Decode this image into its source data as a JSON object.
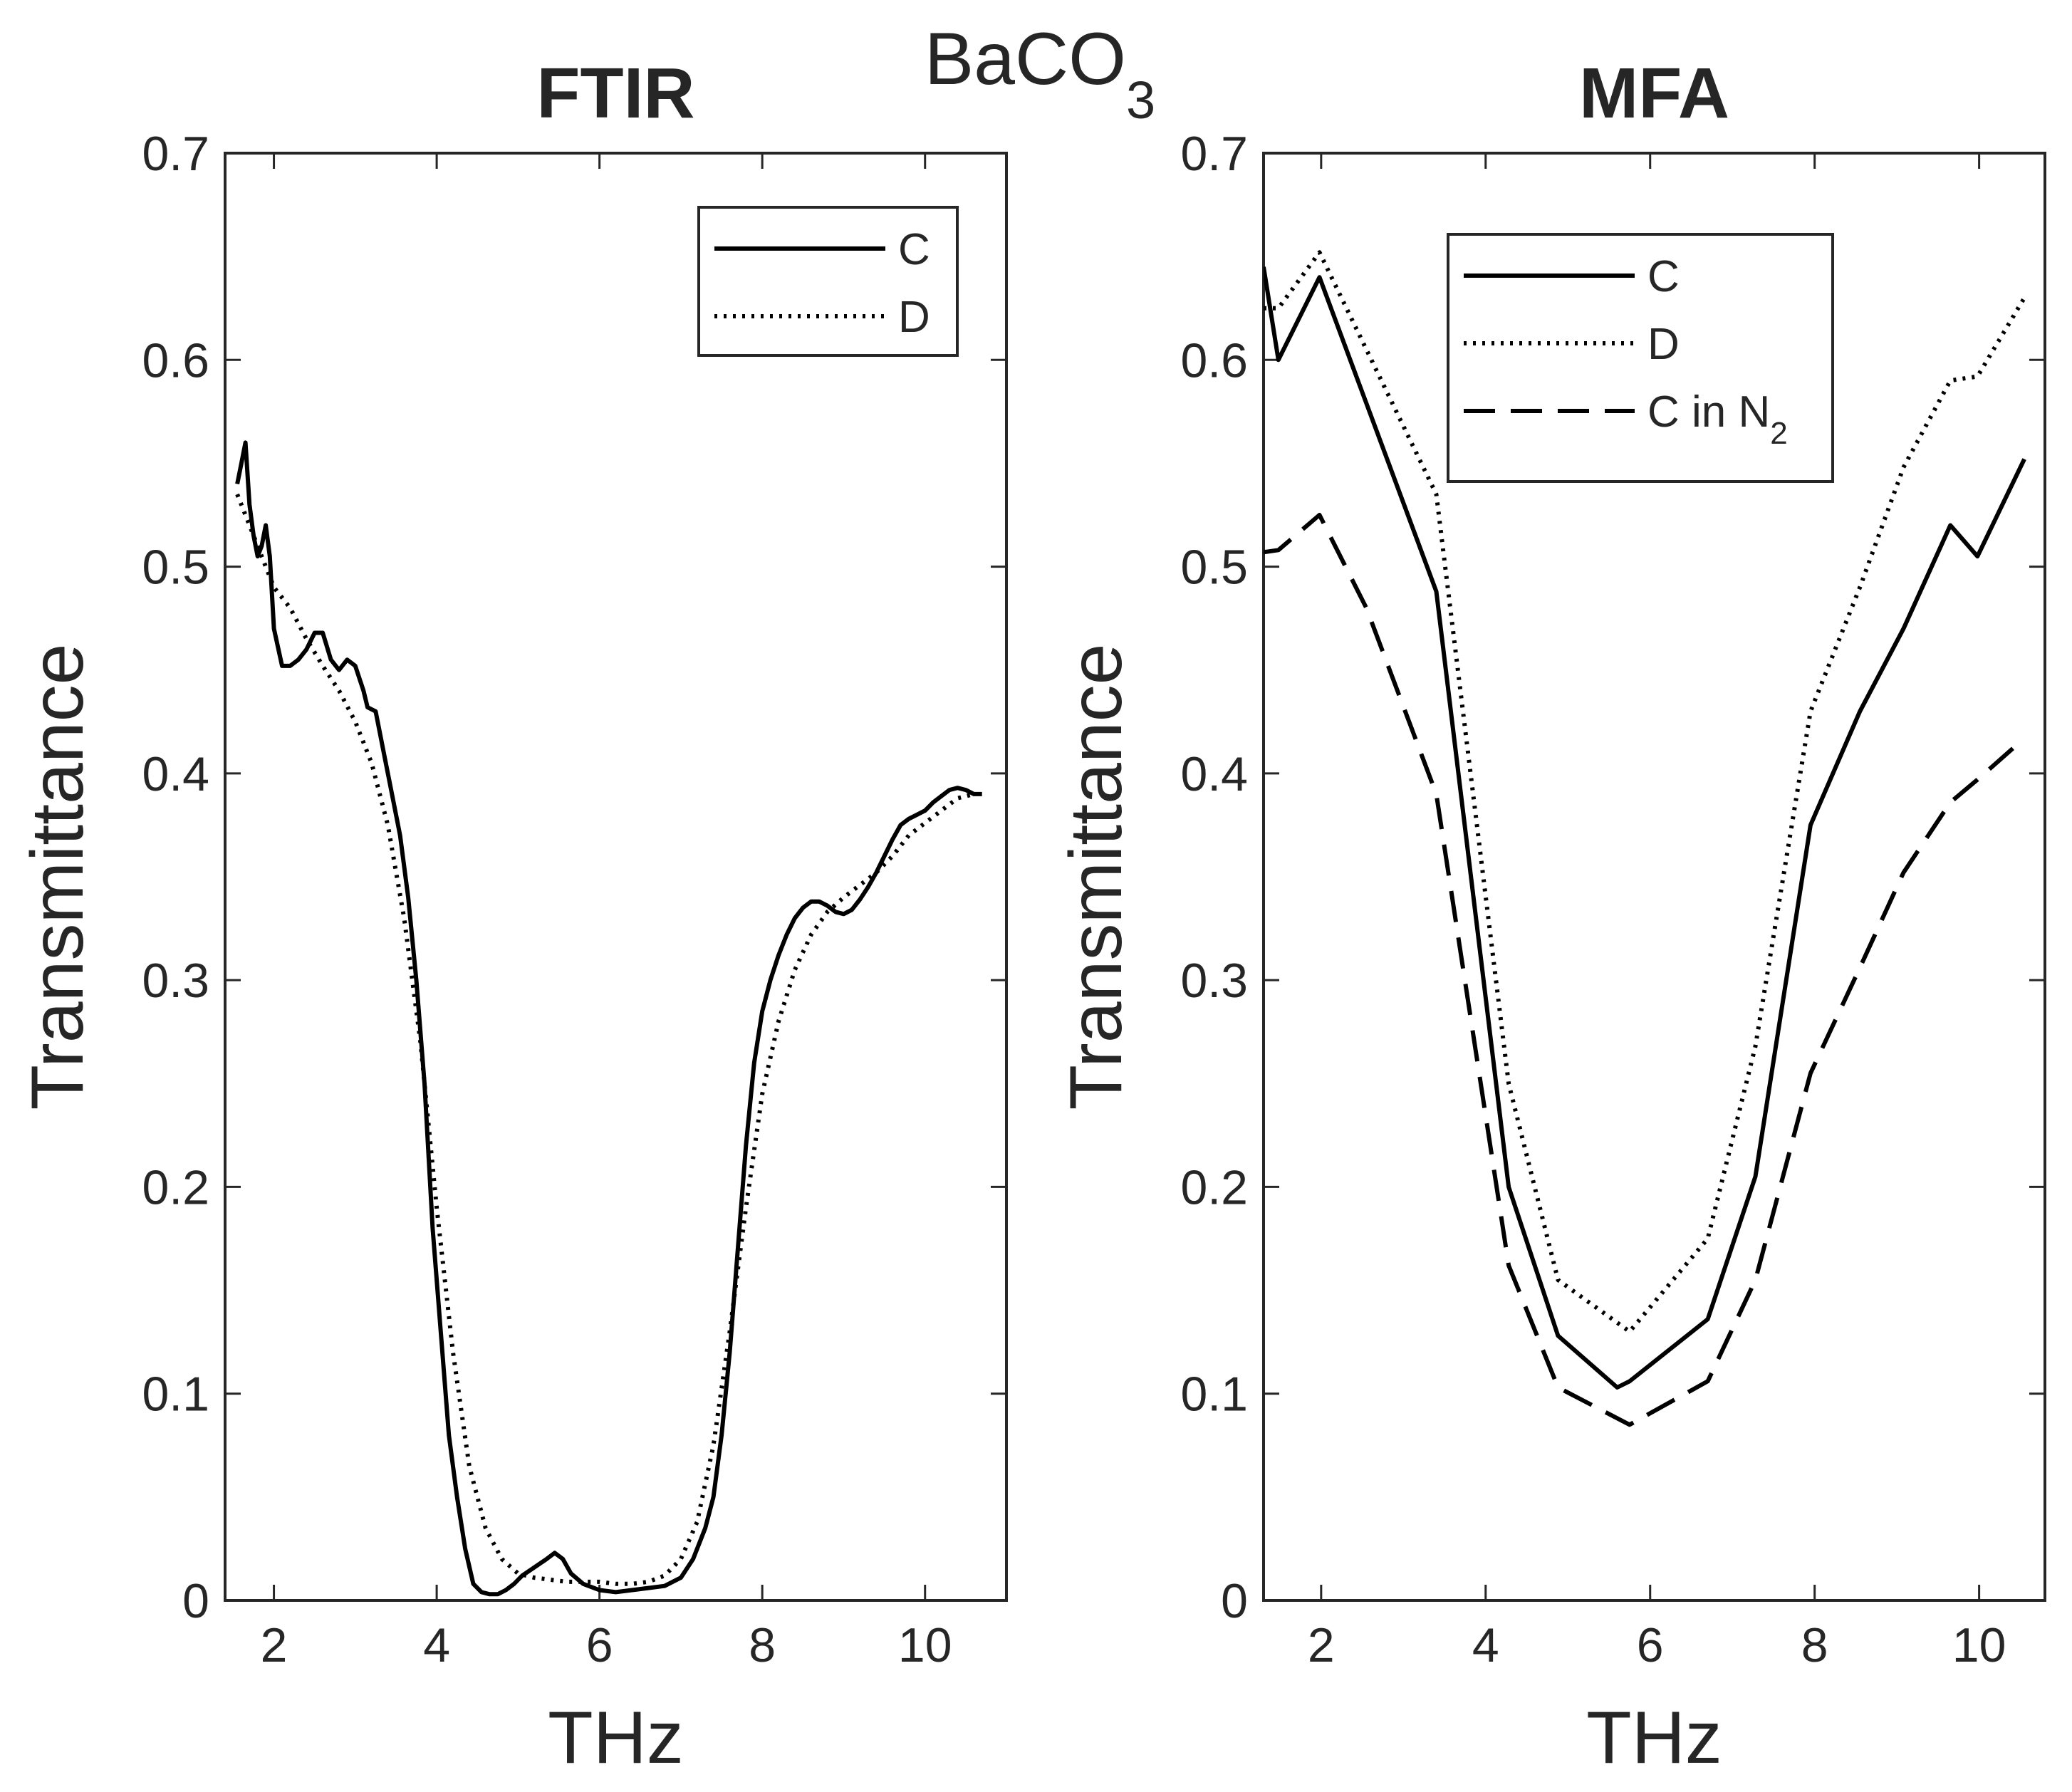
{
  "suptitle": {
    "main": "BaCO",
    "sub": "3"
  },
  "colors": {
    "axis": "#262626",
    "line": "#000000",
    "background": "#ffffff"
  },
  "chart_data": [
    {
      "type": "line",
      "title": "FTIR",
      "xlabel": "THz",
      "ylabel": "Transmittance",
      "xlim": [
        1.4,
        11
      ],
      "ylim": [
        0,
        0.7
      ],
      "xticks": [
        2,
        4,
        6,
        8,
        10
      ],
      "xtick_labels": [
        "2",
        "4",
        "6",
        "8",
        "10"
      ],
      "yticks": [
        0,
        0.1,
        0.2,
        0.3,
        0.4,
        0.5,
        0.6,
        0.7
      ],
      "ytick_labels": [
        "0",
        "0.1",
        "0.2",
        "0.3",
        "0.4",
        "0.5",
        "0.6",
        "0.7"
      ],
      "legend_position": "top-right",
      "series": [
        {
          "name": "C",
          "label_main": "C",
          "label_sub": "",
          "style": "solid",
          "points": [
            [
              1.55,
              0.54
            ],
            [
              1.6,
              0.55
            ],
            [
              1.65,
              0.56
            ],
            [
              1.7,
              0.53
            ],
            [
              1.75,
              0.515
            ],
            [
              1.8,
              0.505
            ],
            [
              1.85,
              0.51
            ],
            [
              1.9,
              0.52
            ],
            [
              1.95,
              0.505
            ],
            [
              2.0,
              0.47
            ],
            [
              2.1,
              0.452
            ],
            [
              2.2,
              0.452
            ],
            [
              2.3,
              0.455
            ],
            [
              2.4,
              0.46
            ],
            [
              2.5,
              0.468
            ],
            [
              2.6,
              0.468
            ],
            [
              2.7,
              0.455
            ],
            [
              2.8,
              0.45
            ],
            [
              2.9,
              0.455
            ],
            [
              3.0,
              0.452
            ],
            [
              3.1,
              0.44
            ],
            [
              3.15,
              0.432
            ],
            [
              3.25,
              0.43
            ],
            [
              3.35,
              0.41
            ],
            [
              3.45,
              0.39
            ],
            [
              3.55,
              0.37
            ],
            [
              3.65,
              0.34
            ],
            [
              3.75,
              0.3
            ],
            [
              3.85,
              0.25
            ],
            [
              3.95,
              0.18
            ],
            [
              4.05,
              0.13
            ],
            [
              4.15,
              0.08
            ],
            [
              4.25,
              0.05
            ],
            [
              4.35,
              0.025
            ],
            [
              4.45,
              0.008
            ],
            [
              4.55,
              0.004
            ],
            [
              4.65,
              0.003
            ],
            [
              4.75,
              0.003
            ],
            [
              4.85,
              0.005
            ],
            [
              4.95,
              0.008
            ],
            [
              5.05,
              0.012
            ],
            [
              5.2,
              0.016
            ],
            [
              5.35,
              0.02
            ],
            [
              5.45,
              0.023
            ],
            [
              5.55,
              0.02
            ],
            [
              5.65,
              0.013
            ],
            [
              5.8,
              0.008
            ],
            [
              6.0,
              0.005
            ],
            [
              6.2,
              0.004
            ],
            [
              6.4,
              0.005
            ],
            [
              6.6,
              0.006
            ],
            [
              6.8,
              0.007
            ],
            [
              7.0,
              0.011
            ],
            [
              7.15,
              0.02
            ],
            [
              7.3,
              0.035
            ],
            [
              7.4,
              0.05
            ],
            [
              7.5,
              0.08
            ],
            [
              7.6,
              0.12
            ],
            [
              7.7,
              0.17
            ],
            [
              7.8,
              0.22
            ],
            [
              7.9,
              0.26
            ],
            [
              8.0,
              0.285
            ],
            [
              8.1,
              0.3
            ],
            [
              8.2,
              0.312
            ],
            [
              8.3,
              0.322
            ],
            [
              8.4,
              0.33
            ],
            [
              8.5,
              0.335
            ],
            [
              8.6,
              0.338
            ],
            [
              8.7,
              0.338
            ],
            [
              8.8,
              0.336
            ],
            [
              8.9,
              0.333
            ],
            [
              9.0,
              0.332
            ],
            [
              9.1,
              0.334
            ],
            [
              9.2,
              0.339
            ],
            [
              9.3,
              0.345
            ],
            [
              9.4,
              0.352
            ],
            [
              9.5,
              0.36
            ],
            [
              9.6,
              0.368
            ],
            [
              9.7,
              0.375
            ],
            [
              9.8,
              0.378
            ],
            [
              9.9,
              0.38
            ],
            [
              10.0,
              0.382
            ],
            [
              10.1,
              0.386
            ],
            [
              10.2,
              0.389
            ],
            [
              10.3,
              0.392
            ],
            [
              10.4,
              0.393
            ],
            [
              10.5,
              0.392
            ],
            [
              10.6,
              0.39
            ],
            [
              10.7,
              0.39
            ]
          ]
        },
        {
          "name": "D",
          "label_main": "D",
          "label_sub": "",
          "style": "dotted",
          "points": [
            [
              1.55,
              0.535
            ],
            [
              1.7,
              0.52
            ],
            [
              1.85,
              0.505
            ],
            [
              2.0,
              0.49
            ],
            [
              2.2,
              0.48
            ],
            [
              2.4,
              0.465
            ],
            [
              2.6,
              0.452
            ],
            [
              2.8,
              0.44
            ],
            [
              3.0,
              0.425
            ],
            [
              3.2,
              0.405
            ],
            [
              3.4,
              0.375
            ],
            [
              3.6,
              0.33
            ],
            [
              3.8,
              0.27
            ],
            [
              4.0,
              0.19
            ],
            [
              4.2,
              0.12
            ],
            [
              4.4,
              0.065
            ],
            [
              4.6,
              0.035
            ],
            [
              4.8,
              0.02
            ],
            [
              5.0,
              0.013
            ],
            [
              5.2,
              0.011
            ],
            [
              5.4,
              0.01
            ],
            [
              5.6,
              0.009
            ],
            [
              5.8,
              0.009
            ],
            [
              6.0,
              0.009
            ],
            [
              6.2,
              0.008
            ],
            [
              6.4,
              0.008
            ],
            [
              6.6,
              0.009
            ],
            [
              6.8,
              0.012
            ],
            [
              7.0,
              0.02
            ],
            [
              7.2,
              0.038
            ],
            [
              7.4,
              0.075
            ],
            [
              7.6,
              0.13
            ],
            [
              7.8,
              0.19
            ],
            [
              8.0,
              0.245
            ],
            [
              8.2,
              0.28
            ],
            [
              8.4,
              0.305
            ],
            [
              8.6,
              0.322
            ],
            [
              8.8,
              0.333
            ],
            [
              9.0,
              0.34
            ],
            [
              9.2,
              0.346
            ],
            [
              9.4,
              0.352
            ],
            [
              9.6,
              0.36
            ],
            [
              9.8,
              0.37
            ],
            [
              10.0,
              0.376
            ],
            [
              10.2,
              0.382
            ],
            [
              10.4,
              0.388
            ],
            [
              10.6,
              0.39
            ]
          ]
        }
      ]
    },
    {
      "type": "line",
      "title": "MFA",
      "xlabel": "THz",
      "ylabel": "Transmittance",
      "xlim": [
        1.3,
        10.8
      ],
      "ylim": [
        0,
        0.7
      ],
      "xticks": [
        2,
        4,
        6,
        8,
        10
      ],
      "xtick_labels": [
        "2",
        "4",
        "6",
        "8",
        "10"
      ],
      "yticks": [
        0,
        0.1,
        0.2,
        0.3,
        0.4,
        0.5,
        0.6,
        0.7
      ],
      "ytick_labels": [
        "0",
        "0.1",
        "0.2",
        "0.3",
        "0.4",
        "0.5",
        "0.6",
        "0.7"
      ],
      "legend_position": "top-center",
      "series": [
        {
          "name": "C",
          "label_main": "C",
          "label_sub": "",
          "style": "solid",
          "points": [
            [
              1.3,
              0.645
            ],
            [
              1.48,
              0.6
            ],
            [
              1.98,
              0.64
            ],
            [
              3.4,
              0.488
            ],
            [
              4.28,
              0.2
            ],
            [
              4.88,
              0.128
            ],
            [
              5.6,
              0.103
            ],
            [
              5.75,
              0.106
            ],
            [
              6.7,
              0.136
            ],
            [
              7.28,
              0.205
            ],
            [
              7.95,
              0.375
            ],
            [
              8.55,
              0.43
            ],
            [
              9.08,
              0.47
            ],
            [
              9.65,
              0.52
            ],
            [
              9.98,
              0.505
            ],
            [
              10.55,
              0.552
            ]
          ]
        },
        {
          "name": "D",
          "label_main": "D",
          "label_sub": "",
          "style": "dotted",
          "points": [
            [
              1.3,
              0.625
            ],
            [
              1.48,
              0.625
            ],
            [
              1.98,
              0.652
            ],
            [
              3.4,
              0.535
            ],
            [
              4.28,
              0.25
            ],
            [
              4.88,
              0.155
            ],
            [
              5.75,
              0.13
            ],
            [
              6.7,
              0.175
            ],
            [
              7.28,
              0.268
            ],
            [
              7.95,
              0.43
            ],
            [
              8.55,
              0.49
            ],
            [
              9.08,
              0.548
            ],
            [
              9.65,
              0.59
            ],
            [
              9.98,
              0.592
            ],
            [
              10.55,
              0.63
            ]
          ]
        },
        {
          "name": "C in N2",
          "label_main": "C in N",
          "label_sub": "2",
          "style": "dashed",
          "points": [
            [
              1.3,
              0.507
            ],
            [
              1.48,
              0.508
            ],
            [
              1.98,
              0.525
            ],
            [
              2.55,
              0.48
            ],
            [
              3.4,
              0.39
            ],
            [
              4.28,
              0.162
            ],
            [
              4.88,
              0.103
            ],
            [
              5.75,
              0.085
            ],
            [
              6.7,
              0.106
            ],
            [
              7.28,
              0.155
            ],
            [
              7.95,
              0.255
            ],
            [
              8.55,
              0.306
            ],
            [
              9.08,
              0.352
            ],
            [
              9.65,
              0.386
            ],
            [
              9.98,
              0.397
            ],
            [
              10.55,
              0.417
            ]
          ]
        }
      ]
    }
  ]
}
